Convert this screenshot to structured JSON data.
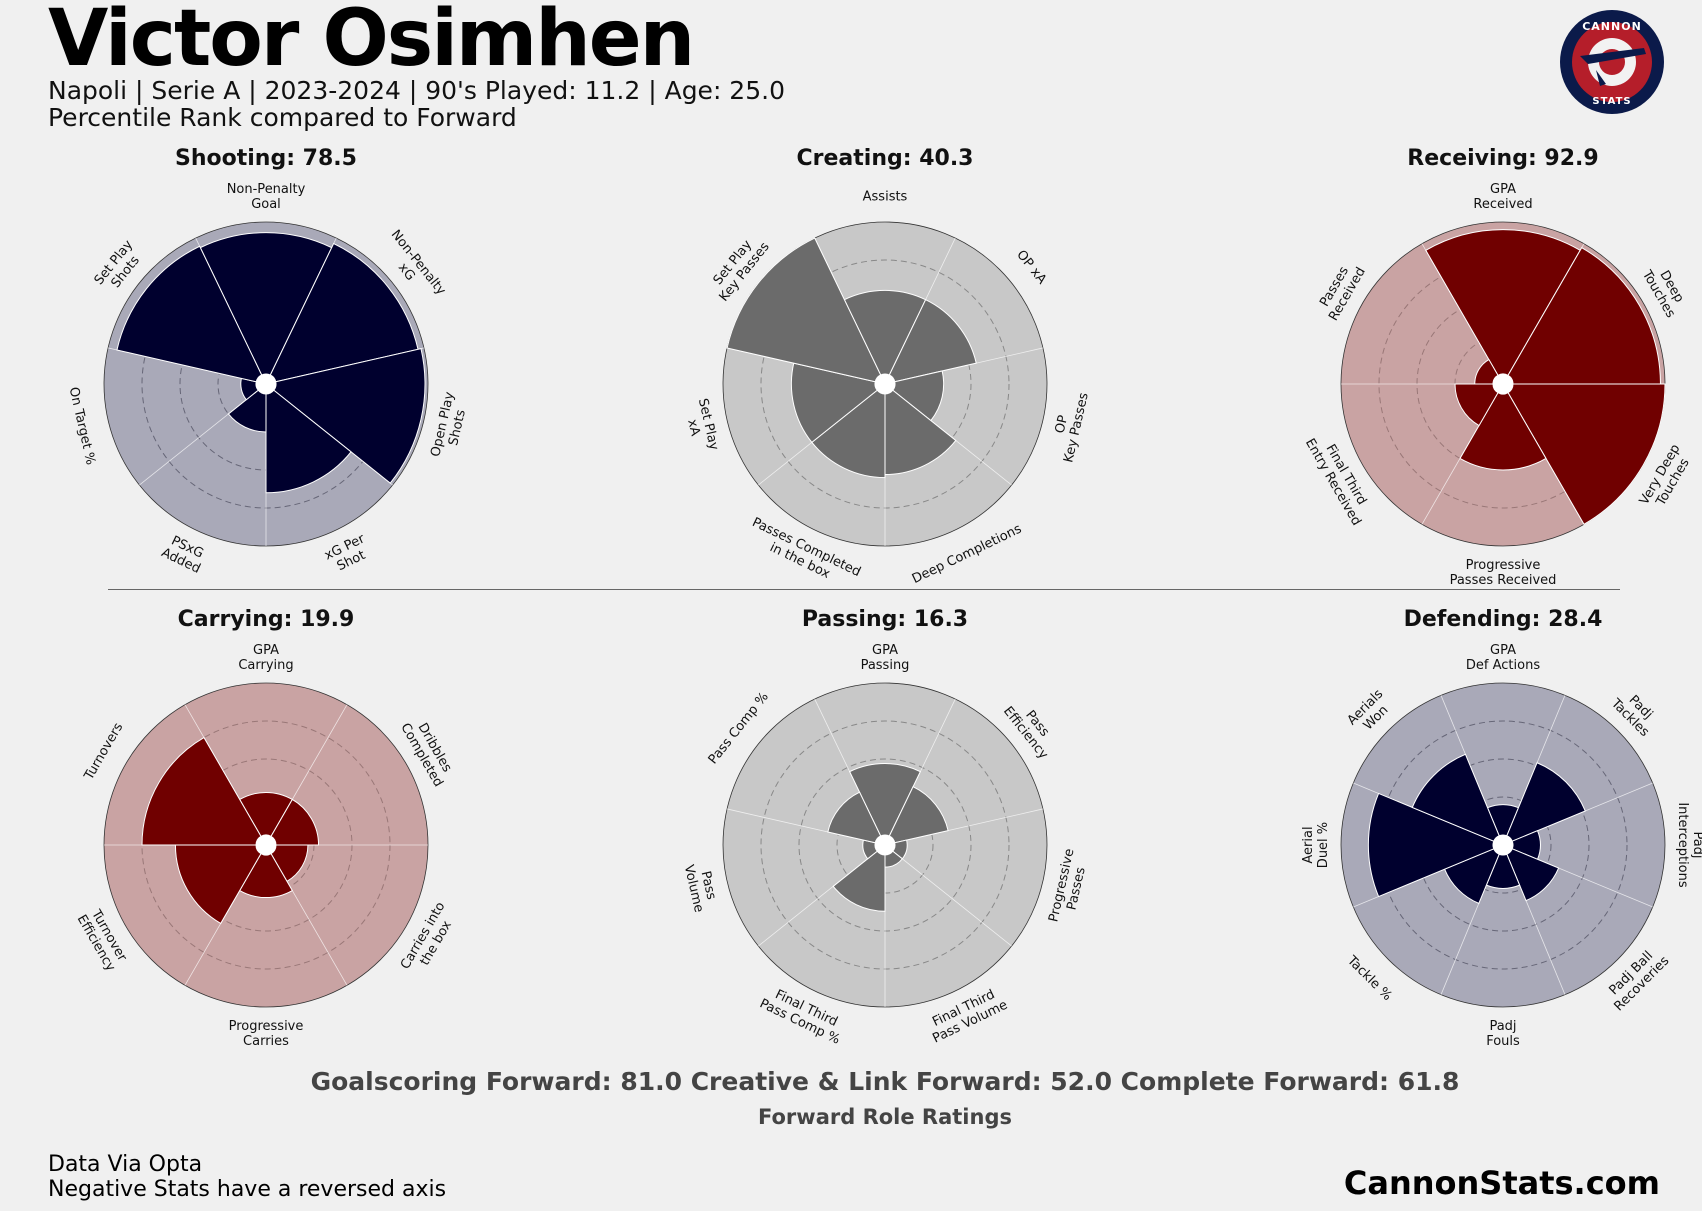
{
  "header": {
    "player_name": "Victor Osimhen",
    "info_line": "Napoli  | Serie A | 2023-2024 | 90's Played: 11.2 | Age: 25.0",
    "comparison_line": "Percentile Rank compared to Forward"
  },
  "logo": {
    "text_top": "CANNON",
    "text_bottom": "STATS"
  },
  "chart_data": [
    {
      "type": "radar",
      "title": "Shooting: 78.5",
      "theme": {
        "bg": "#a9a9b8",
        "fill": "#00002e",
        "grid": "#666677"
      },
      "categories": [
        "Non-Penalty\nGoal",
        "Non-Penalty\nxG",
        "Open Play\nShots",
        "xG Per\nShot",
        "PSxG\nAdded",
        "On Target %",
        "Set Play\nShots"
      ],
      "values": [
        93,
        96,
        98,
        65,
        25,
        10,
        94
      ],
      "rlim": [
        0,
        100
      ]
    },
    {
      "type": "radar",
      "title": "Creating: 40.3",
      "theme": {
        "bg": "#c8c8c8",
        "fill": "#6b6b6b",
        "grid": "#888888"
      },
      "categories": [
        "Assists",
        "OP xA",
        "OP\nKey Passes",
        "Deep Completions",
        "Passes Completed\nin the box",
        "Set Play\nxA",
        "Set Play\nKey Passes"
      ],
      "values": [
        55,
        55,
        32,
        53,
        55,
        55,
        100
      ],
      "rlim": [
        0,
        100
      ]
    },
    {
      "type": "radar",
      "title": "Receiving: 92.9",
      "theme": {
        "bg": "#c9a3a3",
        "fill": "#700000",
        "grid": "#997777"
      },
      "categories": [
        "GPA\nReceived",
        "Deep\nTouches",
        "Very Deep\nTouches",
        "Progressive\nPasses Received",
        "Final Third\nEntry Received",
        "Passes\nReceived"
      ],
      "values": [
        95,
        97,
        100,
        50,
        25,
        12
      ],
      "rlim": [
        0,
        100
      ]
    },
    {
      "type": "radar",
      "title": "Carrying: 19.9",
      "theme": {
        "bg": "#c9a3a3",
        "fill": "#700000",
        "grid": "#997777"
      },
      "categories": [
        "GPA\nCarrying",
        "Dribbles\nCompleted",
        "Carries into\nthe box",
        "Progressive\nCarries",
        "Turnover\nEfficiency",
        "Turnovers"
      ],
      "values": [
        28,
        28,
        21,
        28,
        53,
        75
      ],
      "rlim": [
        0,
        100
      ]
    },
    {
      "type": "radar",
      "title": "Passing: 16.3",
      "theme": {
        "bg": "#c8c8c8",
        "fill": "#6b6b6b",
        "grid": "#888888"
      },
      "categories": [
        "GPA\nPassing",
        "Pass\nEfficiency",
        "Progressive\nPasses",
        "Final Third\nPass Volume",
        "Final Third\nPass Comp %",
        "Pass\nVolume",
        "Pass Comp %"
      ],
      "values": [
        47,
        36,
        8,
        8,
        37,
        8,
        32
      ],
      "rlim": [
        0,
        100
      ]
    },
    {
      "type": "radar",
      "title": "Defending: 28.4",
      "theme": {
        "bg": "#a9a9b8",
        "fill": "#00002e",
        "grid": "#666677"
      },
      "categories": [
        "GPA\nDef Actions",
        "Padj\nTackles",
        "Padj\nInterceptions",
        "Padj Ball\nRecoveries",
        "Padj\nFouls",
        "Tackle %",
        "Aerial\nDuel %",
        "Aerials\nWon"
      ],
      "values": [
        20,
        52,
        18,
        33,
        22,
        35,
        82,
        58
      ],
      "rlim": [
        0,
        100
      ]
    }
  ],
  "roles": {
    "summary": "Goalscoring Forward: 81.0 Creative & Link Forward: 52.0 Complete Forward: 61.8",
    "caption": "Forward Role Ratings"
  },
  "footer": {
    "source": "Data Via Opta",
    "note": "Negative Stats have a reversed axis",
    "site": "CannonStats.com"
  }
}
